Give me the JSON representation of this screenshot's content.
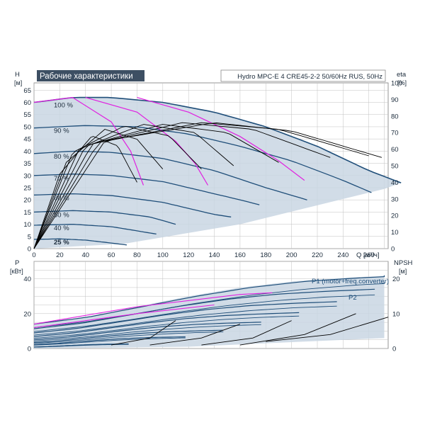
{
  "title_box": "Рабочие характеристики",
  "model_box": "Hydro MPC-E 4 CRE45-2-2 50/60Hz RUS, 50Hz",
  "top_chart": {
    "y_title": "H",
    "y_unit": "[м]",
    "y_right_title": "eta",
    "y_right_unit": "[%]",
    "x_title": "Q [м³/ч]",
    "x_ticks": [
      "0",
      "20",
      "40",
      "60",
      "80",
      "100",
      "120",
      "140",
      "160",
      "180",
      "200",
      "220",
      "240",
      "260"
    ],
    "y_ticks": [
      "0",
      "5",
      "10",
      "15",
      "20",
      "25",
      "30",
      "35",
      "40",
      "45",
      "50",
      "55",
      "60",
      "65"
    ],
    "eta_ticks": [
      "0",
      "10",
      "20",
      "30",
      "40",
      "50",
      "60",
      "70",
      "80",
      "90",
      "100"
    ],
    "speed_labels": [
      "100 %",
      "90 %",
      "80 %",
      "70 %",
      "60 %",
      "50 %",
      "40 %",
      "25 %"
    ]
  },
  "bottom_chart": {
    "y_title": "P",
    "y_unit": "[кВт]",
    "y_right_title": "NPSH",
    "y_right_unit": "[м]",
    "y_ticks": [
      "0",
      "20",
      "40"
    ],
    "npsh_ticks": [
      "0",
      "10",
      "20"
    ],
    "label_p1": "P1 (motor+freq.converter)",
    "label_p2": "P2"
  },
  "colors": {
    "envelope": "#c9d6e3",
    "curve": "#1f4e79",
    "magenta": "#e020e0",
    "eta": "#000000",
    "grid": "#c0c0c0",
    "title_bg": "#3d4f63"
  },
  "chart_data": [
    {
      "type": "line",
      "title": "Рабочие характеристики",
      "xlabel": "Q [м³/ч]",
      "ylabel": "H [м]",
      "y2label": "eta [%]",
      "xlim": [
        0,
        275
      ],
      "ylim": [
        0,
        68
      ],
      "y2lim": [
        0,
        100
      ],
      "grid": true,
      "series": [
        {
          "name": "100 %",
          "x": [
            0,
            30,
            60,
            100,
            140,
            180,
            220,
            260,
            285
          ],
          "y": [
            60,
            62,
            62,
            60,
            56,
            50,
            42,
            32,
            27
          ]
        },
        {
          "name": "90 %",
          "x": [
            0,
            40,
            80,
            120,
            160,
            200,
            240,
            262
          ],
          "y": [
            49.5,
            50.5,
            50,
            47,
            42,
            36,
            28,
            23
          ]
        },
        {
          "name": "80 %",
          "x": [
            0,
            30,
            60,
            100,
            140,
            180,
            212
          ],
          "y": [
            39,
            40,
            39.5,
            37,
            32,
            25,
            20
          ]
        },
        {
          "name": "70 %",
          "x": [
            0,
            30,
            60,
            100,
            140,
            160,
            175
          ],
          "y": [
            30,
            30.6,
            30,
            27.5,
            22.5,
            20,
            18
          ]
        },
        {
          "name": "60 %",
          "x": [
            0,
            30,
            60,
            100,
            140,
            153
          ],
          "y": [
            22,
            22.5,
            21.8,
            19,
            14,
            13
          ]
        },
        {
          "name": "50 %",
          "x": [
            0,
            30,
            60,
            90,
            110
          ],
          "y": [
            15,
            15.6,
            15,
            13,
            10
          ]
        },
        {
          "name": "40 %",
          "x": [
            0,
            30,
            60,
            95
          ],
          "y": [
            9.6,
            10,
            9,
            6
          ]
        },
        {
          "name": "25 %",
          "x": [
            0,
            20,
            40,
            60,
            72
          ],
          "y": [
            3.8,
            4,
            3.5,
            2.3,
            1.5
          ]
        }
      ]
    },
    {
      "type": "line",
      "xlabel": "Q [м³/ч]",
      "ylabel": "P [кВт]",
      "y2label": "NPSH [м]",
      "xlim": [
        0,
        275
      ],
      "ylim": [
        0,
        50
      ],
      "y2lim": [
        0,
        25
      ],
      "grid": true,
      "series": [
        {
          "name": "P1 (motor+freq.converter)",
          "x": [
            0,
            40,
            80,
            120,
            160,
            200,
            240,
            280
          ],
          "y": [
            14,
            18,
            24,
            30,
            35,
            38.5,
            40.5,
            42
          ]
        },
        {
          "name": "P2",
          "x": [
            0,
            40,
            80,
            120,
            160,
            200,
            240,
            280
          ],
          "y": [
            12,
            15.5,
            20.5,
            26,
            30.5,
            34,
            36.5,
            38
          ]
        }
      ]
    }
  ]
}
